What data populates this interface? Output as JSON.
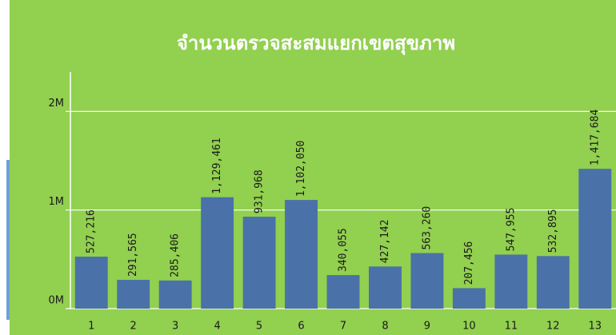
{
  "chart_data": {
    "type": "bar",
    "title": "จำนวนตรวจสะสมแยกเขตสุขภาพ",
    "categories": [
      "1",
      "2",
      "3",
      "4",
      "5",
      "6",
      "7",
      "8",
      "9",
      "10",
      "11",
      "12",
      "13"
    ],
    "values": [
      527216,
      291565,
      285406,
      1129461,
      931968,
      1102050,
      340055,
      427142,
      563260,
      207456,
      547955,
      532895,
      1417684
    ],
    "value_labels": [
      "527,216",
      "291,565",
      "285,406",
      "1,129,461",
      "931,968",
      "1,102,050",
      "340,055",
      "427,142",
      "563,260",
      "207,456",
      "547,955",
      "532,895",
      "1,417,684"
    ],
    "color": "#4a72a8",
    "ylim": [
      0,
      2400000
    ],
    "yticks": [
      {
        "value": 0,
        "label": "0M"
      },
      {
        "value": 1000000,
        "label": "1M"
      },
      {
        "value": 2000000,
        "label": "2M"
      }
    ],
    "grid": true
  }
}
